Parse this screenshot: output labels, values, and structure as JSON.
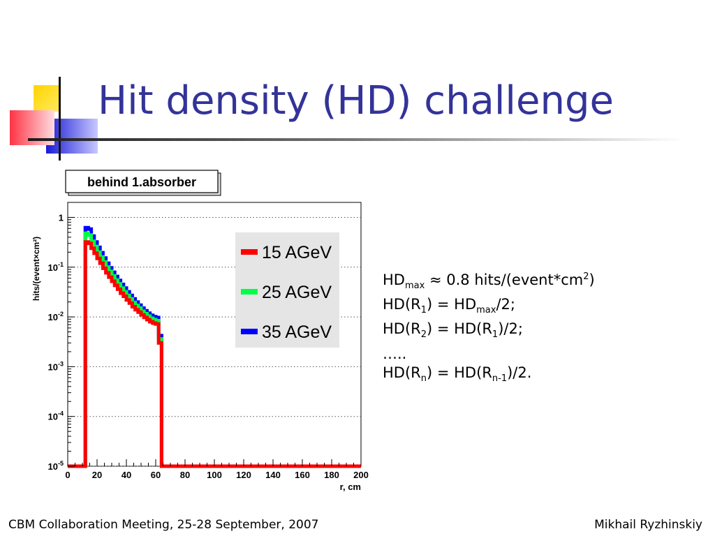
{
  "slide": {
    "title": "Hit density (HD) challenge",
    "footer_left": "CBM Collaboration Meeting, 25-28 September, 2007",
    "footer_right": "Mikhail Ryzhinskiy"
  },
  "text_block": {
    "line1_a": "HD",
    "line1_sub": "max",
    "line1_b": " ≈ 0.8 hits/(event*cm",
    "line1_sup": "2",
    "line1_c": ")",
    "line2_a": "HD(R",
    "line2_sub1": "1",
    "line2_b": ") = HD",
    "line2_sub2": "max",
    "line2_c": "/2;",
    "line3_a": "HD(R",
    "line3_sub1": "2",
    "line3_b": ") = HD(R",
    "line3_sub2": "1",
    "line3_c": ")/2;",
    "line4": "…..",
    "line5_a": "HD(R",
    "line5_sub1": "n",
    "line5_b": ") = HD(R",
    "line5_sub2": "n-1",
    "line5_c": ")/2."
  },
  "colors": {
    "title": "#333399",
    "series_15": "#ff0000",
    "series_25": "#00ff44",
    "series_35": "#0000ff",
    "legend_bg": "#e5e5e5"
  },
  "chart_data": {
    "type": "line",
    "title": "behind 1.absorber",
    "xlabel": "r, cm",
    "ylabel": "hits/(event×cm²)",
    "xlim": [
      0,
      200
    ],
    "ylim": [
      1e-05,
      2
    ],
    "yscale": "log",
    "xticks": [
      0,
      20,
      40,
      60,
      80,
      100,
      120,
      140,
      160,
      180,
      200
    ],
    "yticks": [
      {
        "value": 1e-05,
        "base": "10",
        "exp": "-5"
      },
      {
        "value": 0.0001,
        "base": "10",
        "exp": "-4"
      },
      {
        "value": 0.001,
        "base": "10",
        "exp": "-3"
      },
      {
        "value": 0.01,
        "base": "10",
        "exp": "-2"
      },
      {
        "value": 0.1,
        "base": "10",
        "exp": "-1"
      },
      {
        "value": 1,
        "base": "1",
        "exp": ""
      }
    ],
    "grid": true,
    "legend": "right",
    "x_bin_edges": [
      0,
      12,
      14,
      16,
      18,
      20,
      22,
      24,
      26,
      28,
      30,
      32,
      34,
      36,
      38,
      40,
      42,
      44,
      46,
      48,
      50,
      52,
      54,
      56,
      58,
      60,
      62,
      64,
      200
    ],
    "series": [
      {
        "name": "15 AGeV",
        "color": "#ff0000",
        "values": [
          1e-05,
          0.32,
          0.3,
          0.24,
          0.19,
          0.15,
          0.12,
          0.095,
          0.077,
          0.063,
          0.052,
          0.043,
          0.036,
          0.03,
          0.026,
          0.022,
          0.019,
          0.016,
          0.014,
          0.0125,
          0.011,
          0.0098,
          0.0088,
          0.008,
          0.0075,
          0.0072,
          0.003,
          1e-05
        ]
      },
      {
        "name": "25 AGeV",
        "color": "#00ff44",
        "values": [
          1e-05,
          0.48,
          0.44,
          0.33,
          0.26,
          0.2,
          0.16,
          0.127,
          0.1,
          0.082,
          0.067,
          0.055,
          0.046,
          0.038,
          0.032,
          0.027,
          0.023,
          0.0195,
          0.017,
          0.015,
          0.013,
          0.0116,
          0.0104,
          0.0094,
          0.0088,
          0.0084,
          0.0036,
          1e-05
        ]
      },
      {
        "name": "35 AGeV",
        "color": "#0000ff",
        "values": [
          1e-05,
          0.62,
          0.58,
          0.42,
          0.32,
          0.25,
          0.195,
          0.152,
          0.12,
          0.097,
          0.079,
          0.065,
          0.054,
          0.045,
          0.038,
          0.032,
          0.027,
          0.023,
          0.0198,
          0.0172,
          0.015,
          0.0133,
          0.0119,
          0.0108,
          0.0101,
          0.0097,
          0.0042,
          1e-05
        ]
      }
    ]
  }
}
